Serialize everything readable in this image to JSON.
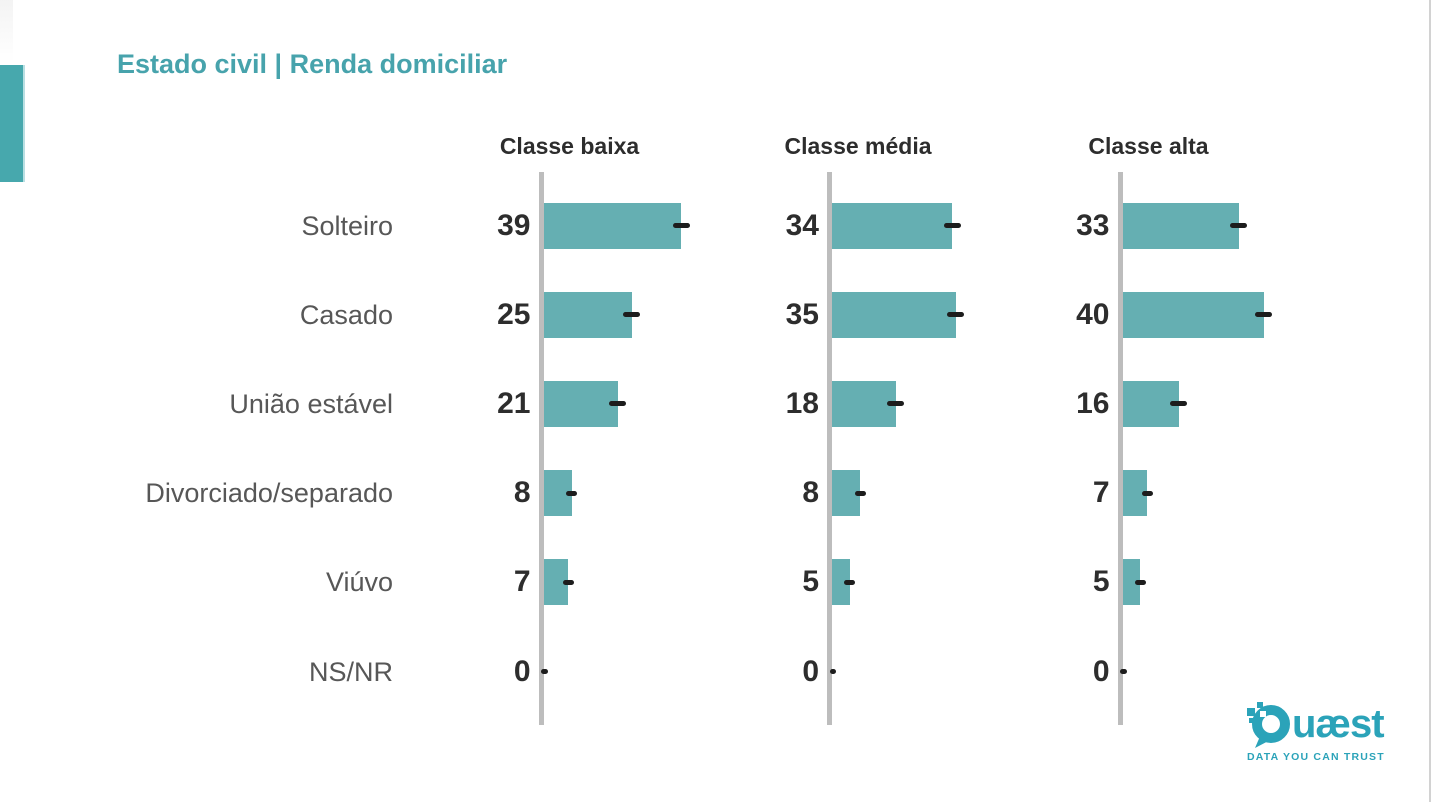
{
  "page": {
    "title": "Estado civil | Renda domiciliar"
  },
  "chart_data": {
    "type": "bar",
    "orientation": "horizontal",
    "title": "Estado civil | Renda domiciliar",
    "categories": [
      "Solteiro",
      "Casado",
      "União estável",
      "Divorciado/separado",
      "Viúvo",
      "NS/NR"
    ],
    "series": [
      {
        "name": "Classe baixa",
        "values": [
          39,
          25,
          21,
          8,
          7,
          0
        ]
      },
      {
        "name": "Classe média",
        "values": [
          34,
          35,
          18,
          8,
          5,
          0
        ]
      },
      {
        "name": "Classe alta",
        "values": [
          33,
          40,
          16,
          7,
          5,
          0
        ]
      }
    ],
    "value_labels_shown": true,
    "error_marks_shown": true,
    "xlim": [
      0,
      45
    ],
    "grid": false,
    "legend": "none",
    "bar_color": "#65afb2",
    "axis_color": "#bdbdbd",
    "error_mark_color": "#1d1d1d",
    "value_label_color": "#2d2d2d",
    "category_label_color": "#575757"
  },
  "branding": {
    "logo_q": "Q",
    "logo_rest": "uæst",
    "tagline": "DATA YOU CAN TRUST",
    "logo_color": "#2ba3b9"
  },
  "decor": {
    "accent_color": "#47a8ad",
    "title_color": "#47a3ac"
  }
}
